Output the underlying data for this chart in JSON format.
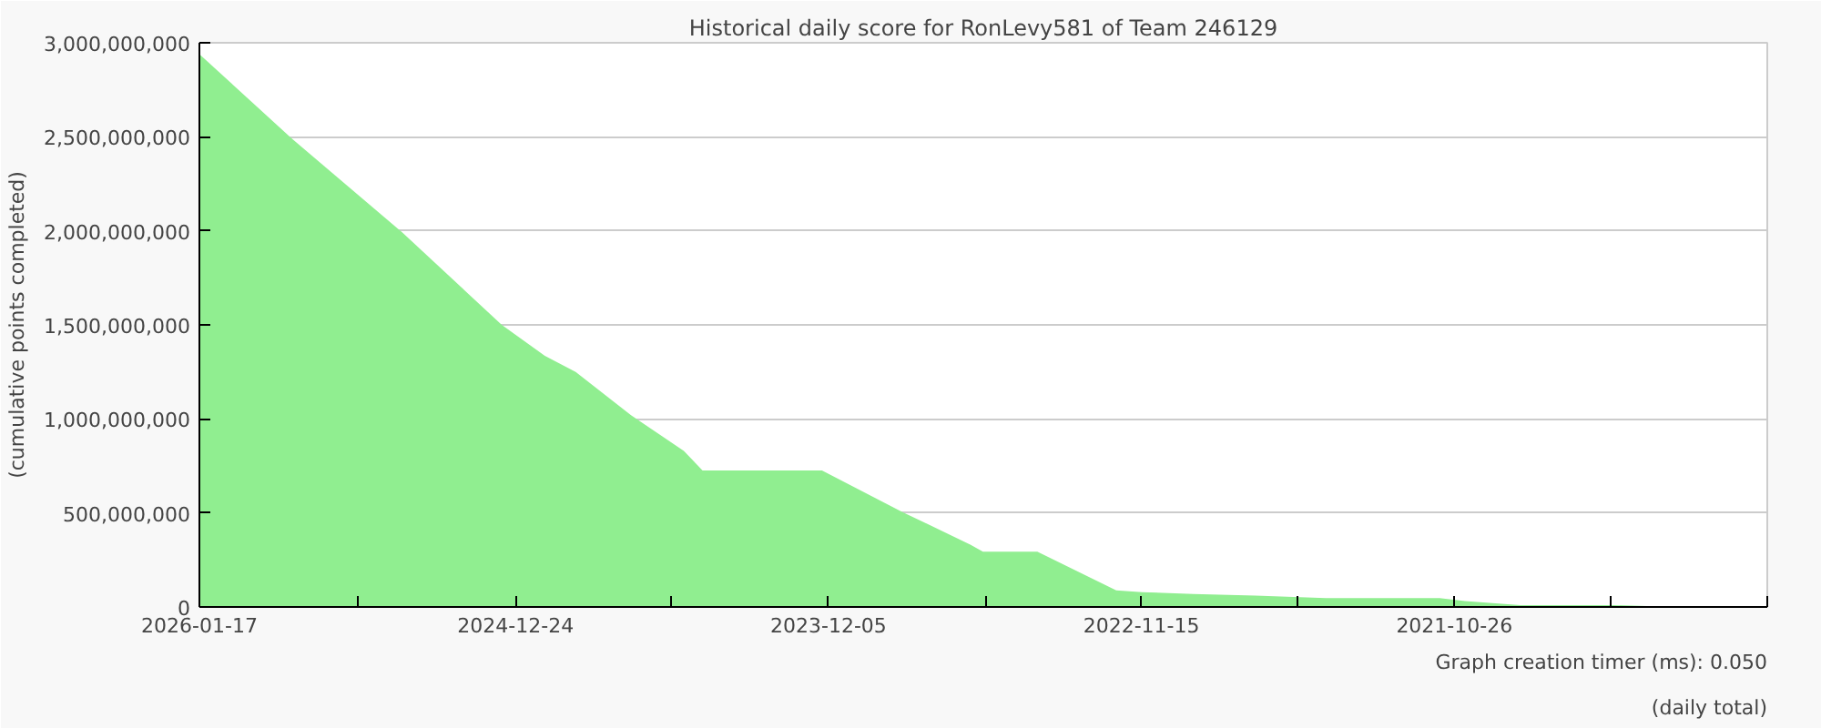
{
  "chart_data": {
    "type": "area",
    "title": "Historical daily score for RonLevy581 of Team 246129",
    "xlabel": "(daily total)",
    "ylabel": "(cumulative points completed)",
    "annotations": [
      "Graph creation timer (ms): 0.050"
    ],
    "x": [
      "2026-01-17",
      "2025-09-25",
      "2025-05-12",
      "2025-01-10",
      "2024-11-18",
      "2024-10-11",
      "2024-08-04",
      "2024-05-31",
      "2024-05-08",
      "2023-12-13",
      "2023-09-05",
      "2023-06-13",
      "2023-05-29",
      "2023-03-23",
      "2022-12-16",
      "2022-11-14",
      "2022-09-12",
      "2022-06-28",
      "2022-04-02",
      "2021-11-13",
      "2021-10-13",
      "2021-08-06",
      "2021-04-14",
      "2021-03-03",
      "2021-03-01"
    ],
    "series": [
      {
        "color": "#90ee90",
        "values": [
          2940000000,
          2490000000,
          1990000000,
          1500000000,
          1335000000,
          1250000000,
          1020000000,
          830000000,
          726000000,
          726000000,
          505000000,
          330000000,
          294000000,
          294000000,
          88000000,
          79000000,
          69000000,
          60000000,
          47000000,
          47000000,
          31000000,
          10000000,
          10000000,
          5000000,
          0
        ]
      }
    ],
    "xlim": [
      "2026-01-17",
      "2020-10-06"
    ],
    "xticks": [
      {
        "value": "2026-01-17",
        "label": "2026-01-17"
      },
      {
        "value": "2025-07-07",
        "label": null
      },
      {
        "value": "2024-12-24",
        "label": "2024-12-24"
      },
      {
        "value": "2024-06-15",
        "label": null
      },
      {
        "value": "2023-12-05",
        "label": "2023-12-05"
      },
      {
        "value": "2023-05-26",
        "label": null
      },
      {
        "value": "2022-11-15",
        "label": "2022-11-15"
      },
      {
        "value": "2022-05-06",
        "label": null
      },
      {
        "value": "2021-10-26",
        "label": "2021-10-26"
      },
      {
        "value": "2021-04-16",
        "label": null
      },
      {
        "value": "2020-10-06",
        "label": null
      }
    ],
    "ylim": [
      0,
      3000000000
    ],
    "yticks": [
      {
        "value": 0,
        "label": "0"
      },
      {
        "value": 500000000,
        "label": "500,000,000"
      },
      {
        "value": 1000000000,
        "label": "1,000,000,000"
      },
      {
        "value": 1500000000,
        "label": "1,500,000,000"
      },
      {
        "value": 2000000000,
        "label": "2,000,000,000"
      },
      {
        "value": 2500000000,
        "label": "2,500,000,000"
      },
      {
        "value": 3000000000,
        "label": "3,000,000,000"
      }
    ],
    "grid": "y"
  }
}
